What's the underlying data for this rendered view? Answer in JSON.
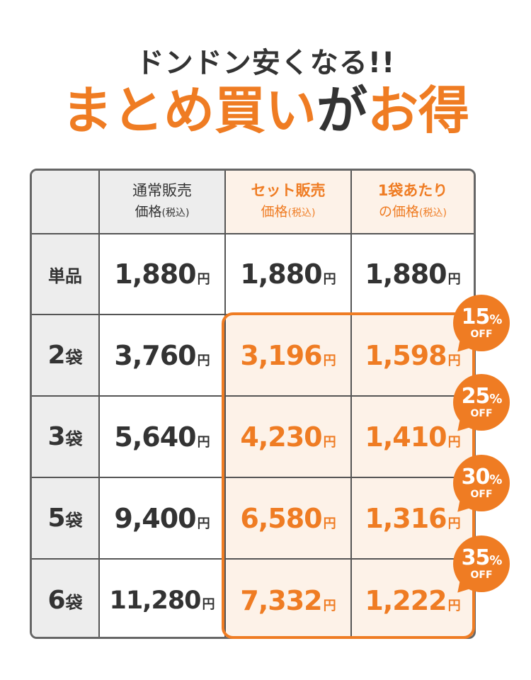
{
  "headline": "ドンドン安くなる!!",
  "title": {
    "part1": "まとめ買い",
    "part2": "が",
    "part3": "お得"
  },
  "table": {
    "headers": {
      "col1_line1": "通常販売",
      "col1_line2": "価格",
      "col1_line2_small": "(税込)",
      "col2_line1": "セット販売",
      "col2_line2": "価格",
      "col2_line2_small": "(税込)",
      "col3_line1": "1袋あたり",
      "col3_line2": "の価格",
      "col3_line2_small": "(税込)"
    },
    "yen": "円",
    "rows": [
      {
        "label": "単品",
        "label_num": "",
        "label_unit": "",
        "regular": "1,880",
        "set": "1,880",
        "per": "1,880"
      },
      {
        "label": "",
        "label_num": "2",
        "label_unit": "袋",
        "regular": "3,760",
        "set": "3,196",
        "per": "1,598"
      },
      {
        "label": "",
        "label_num": "3",
        "label_unit": "袋",
        "regular": "5,640",
        "set": "4,230",
        "per": "1,410"
      },
      {
        "label": "",
        "label_num": "5",
        "label_unit": "袋",
        "regular": "9,400",
        "set": "6,580",
        "per": "1,316"
      },
      {
        "label": "",
        "label_num": "6",
        "label_unit": "袋",
        "regular": "11,280",
        "set": "7,332",
        "per": "1,222"
      }
    ]
  },
  "badges": [
    {
      "value": "15",
      "percent": "%",
      "off": "OFF"
    },
    {
      "value": "25",
      "percent": "%",
      "off": "OFF"
    },
    {
      "value": "30",
      "percent": "%",
      "off": "OFF"
    },
    {
      "value": "35",
      "percent": "%",
      "off": "OFF"
    }
  ],
  "colors": {
    "accent": "#ef7c23",
    "text": "#333333",
    "header_gray": "#ededed",
    "highlight_bg": "#fdf2e8"
  }
}
